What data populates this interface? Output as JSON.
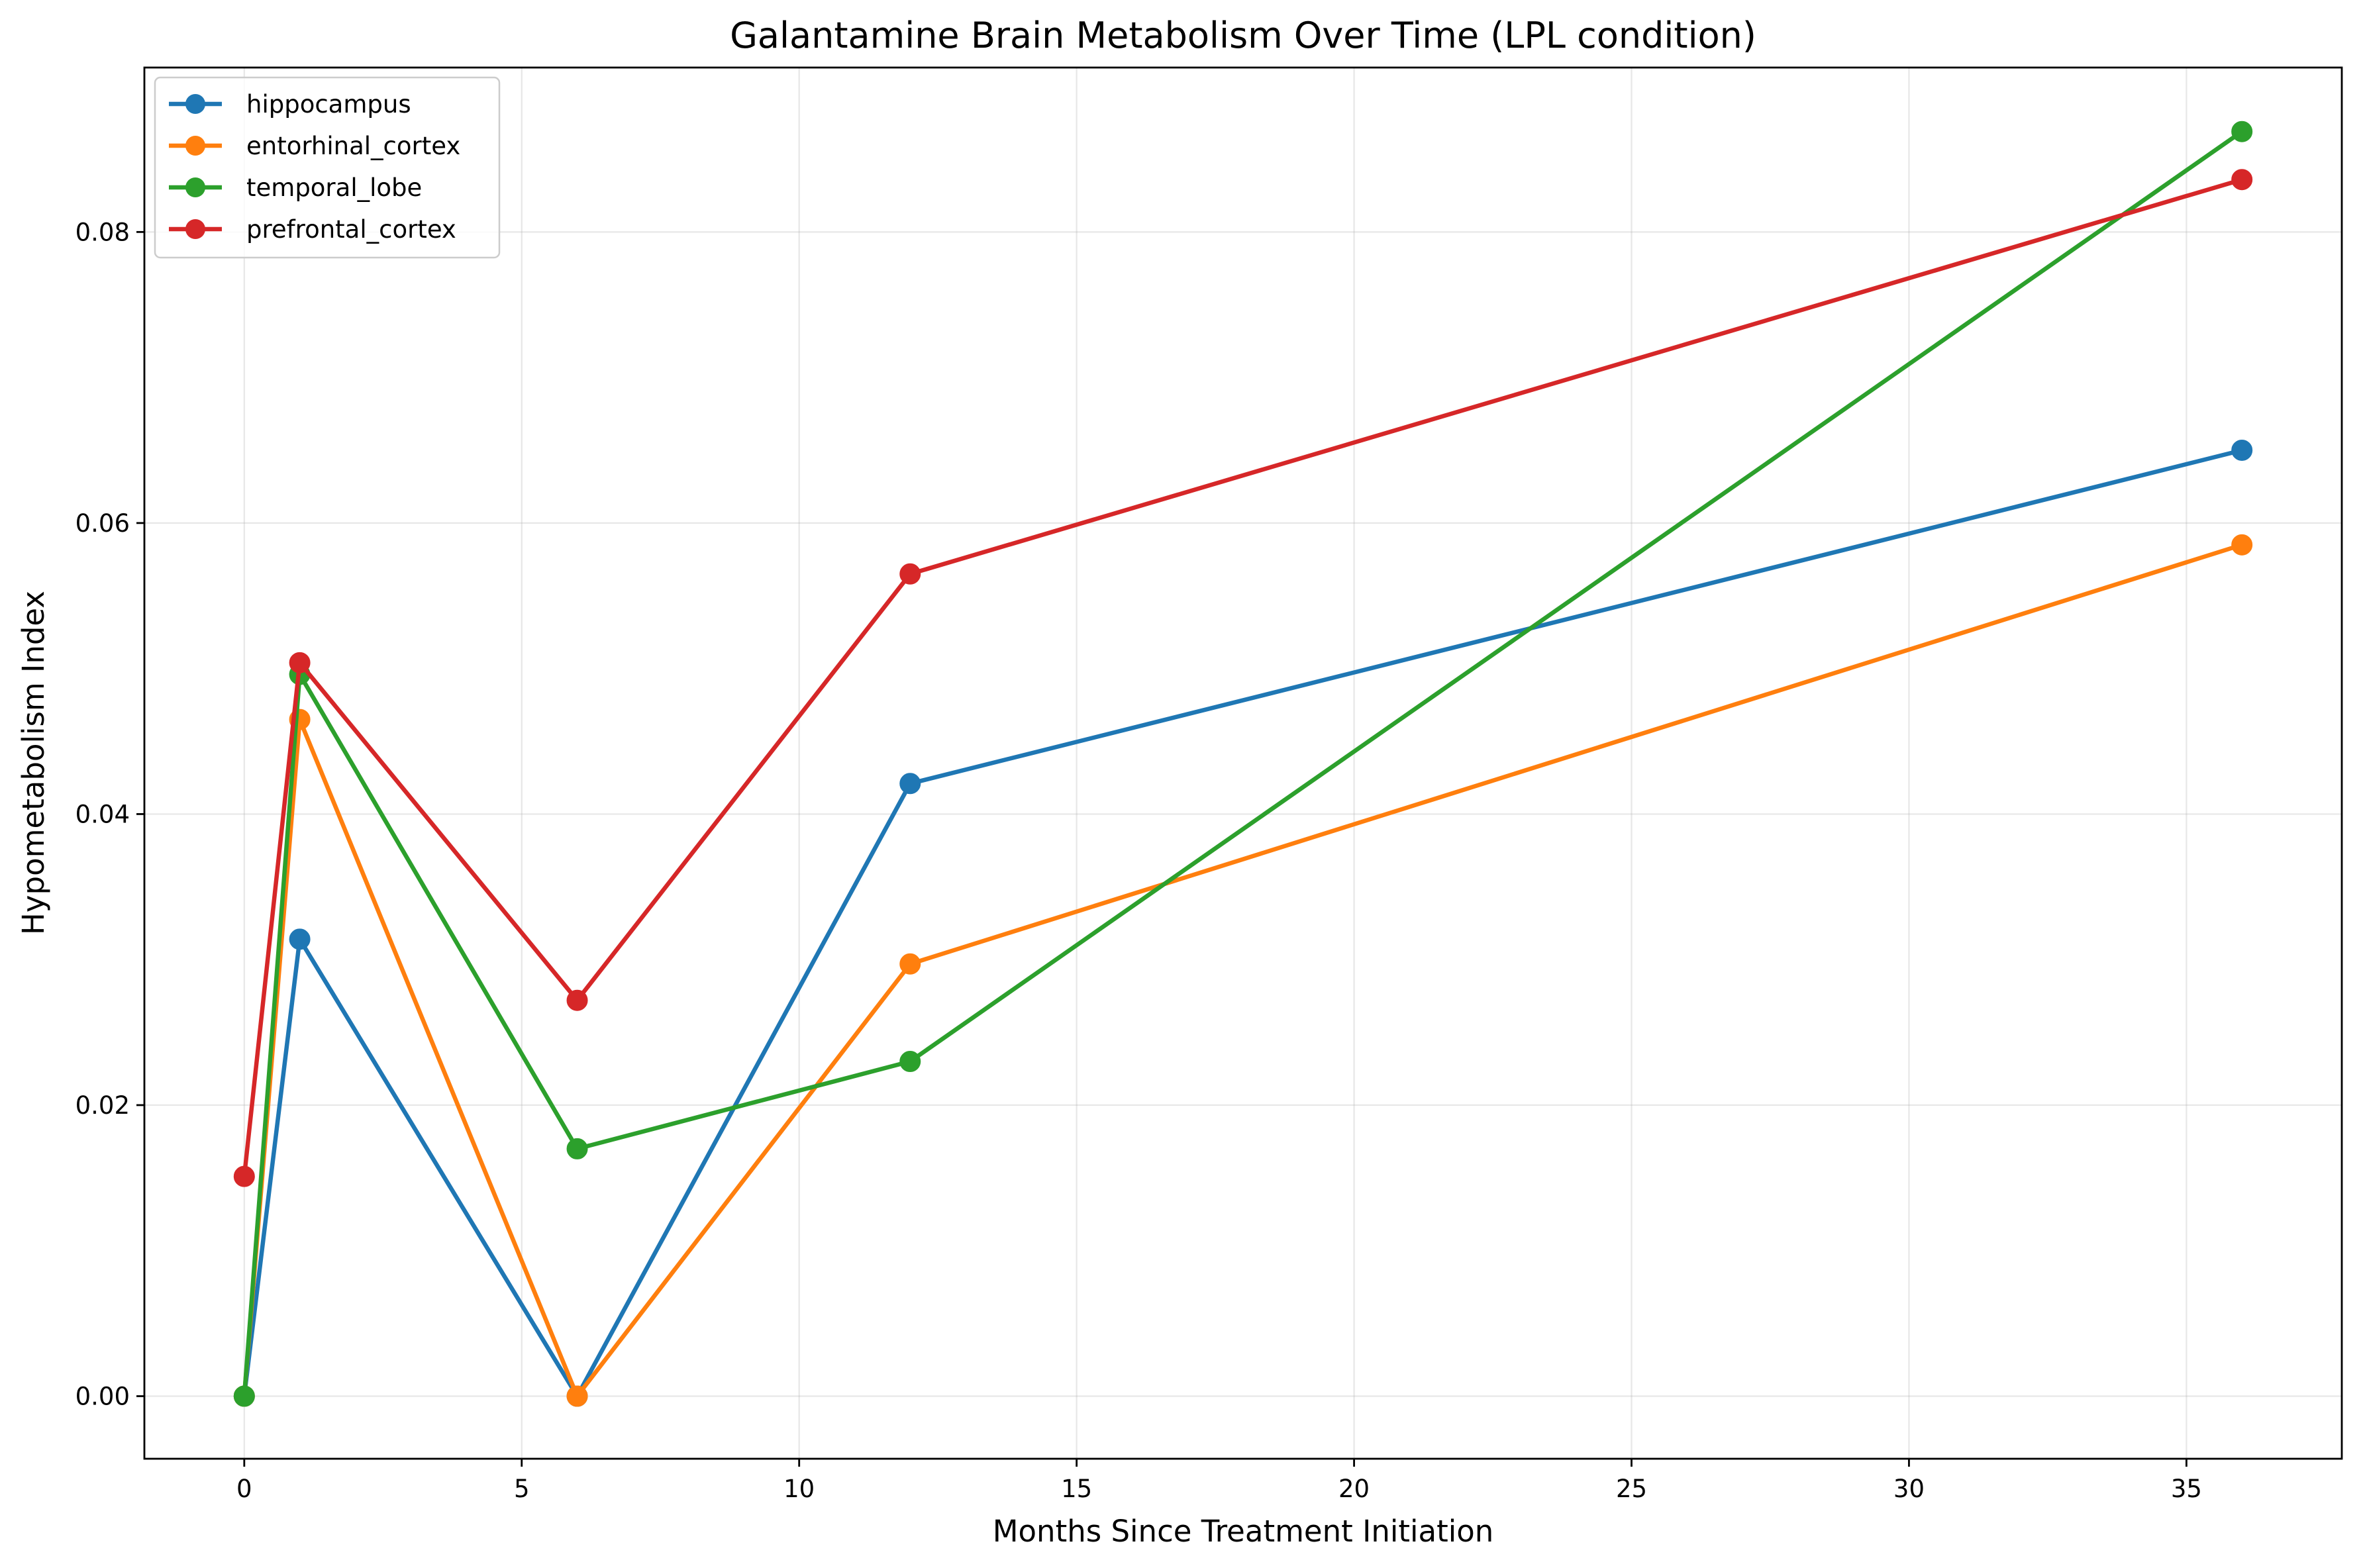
{
  "chart_data": {
    "type": "line",
    "title": "Galantamine Brain Metabolism Over Time (LPL condition)",
    "xlabel": "Months Since Treatment Initiation",
    "ylabel": "Hypometabolism Index",
    "xlim": [
      -1.8,
      37.8
    ],
    "ylim": [
      -0.0043,
      0.0913
    ],
    "xticks": [
      0,
      5,
      10,
      15,
      20,
      25,
      30,
      35
    ],
    "xtick_labels": [
      "0",
      "5",
      "10",
      "15",
      "20",
      "25",
      "30",
      "35"
    ],
    "yticks": [
      0.0,
      0.02,
      0.04,
      0.06,
      0.08
    ],
    "ytick_labels": [
      "0.00",
      "0.02",
      "0.04",
      "0.06",
      "0.08"
    ],
    "grid": true,
    "legend_position": "upper-left",
    "x": [
      0,
      1,
      6,
      12,
      36
    ],
    "series": [
      {
        "name": "hippocampus",
        "color": "#1f77b4",
        "values": [
          0.0,
          0.0314,
          0.0,
          0.0421,
          0.065
        ]
      },
      {
        "name": "entorhinal_cortex",
        "color": "#ff7f0e",
        "values": [
          0.0,
          0.0465,
          0.0,
          0.0297,
          0.0585
        ]
      },
      {
        "name": "temporal_lobe",
        "color": "#2ca02c",
        "values": [
          0.0,
          0.0496,
          0.017,
          0.023,
          0.0869
        ]
      },
      {
        "name": "prefrontal_cortex",
        "color": "#d62728",
        "values": [
          0.0151,
          0.0504,
          0.0272,
          0.0565,
          0.0836
        ]
      }
    ]
  }
}
